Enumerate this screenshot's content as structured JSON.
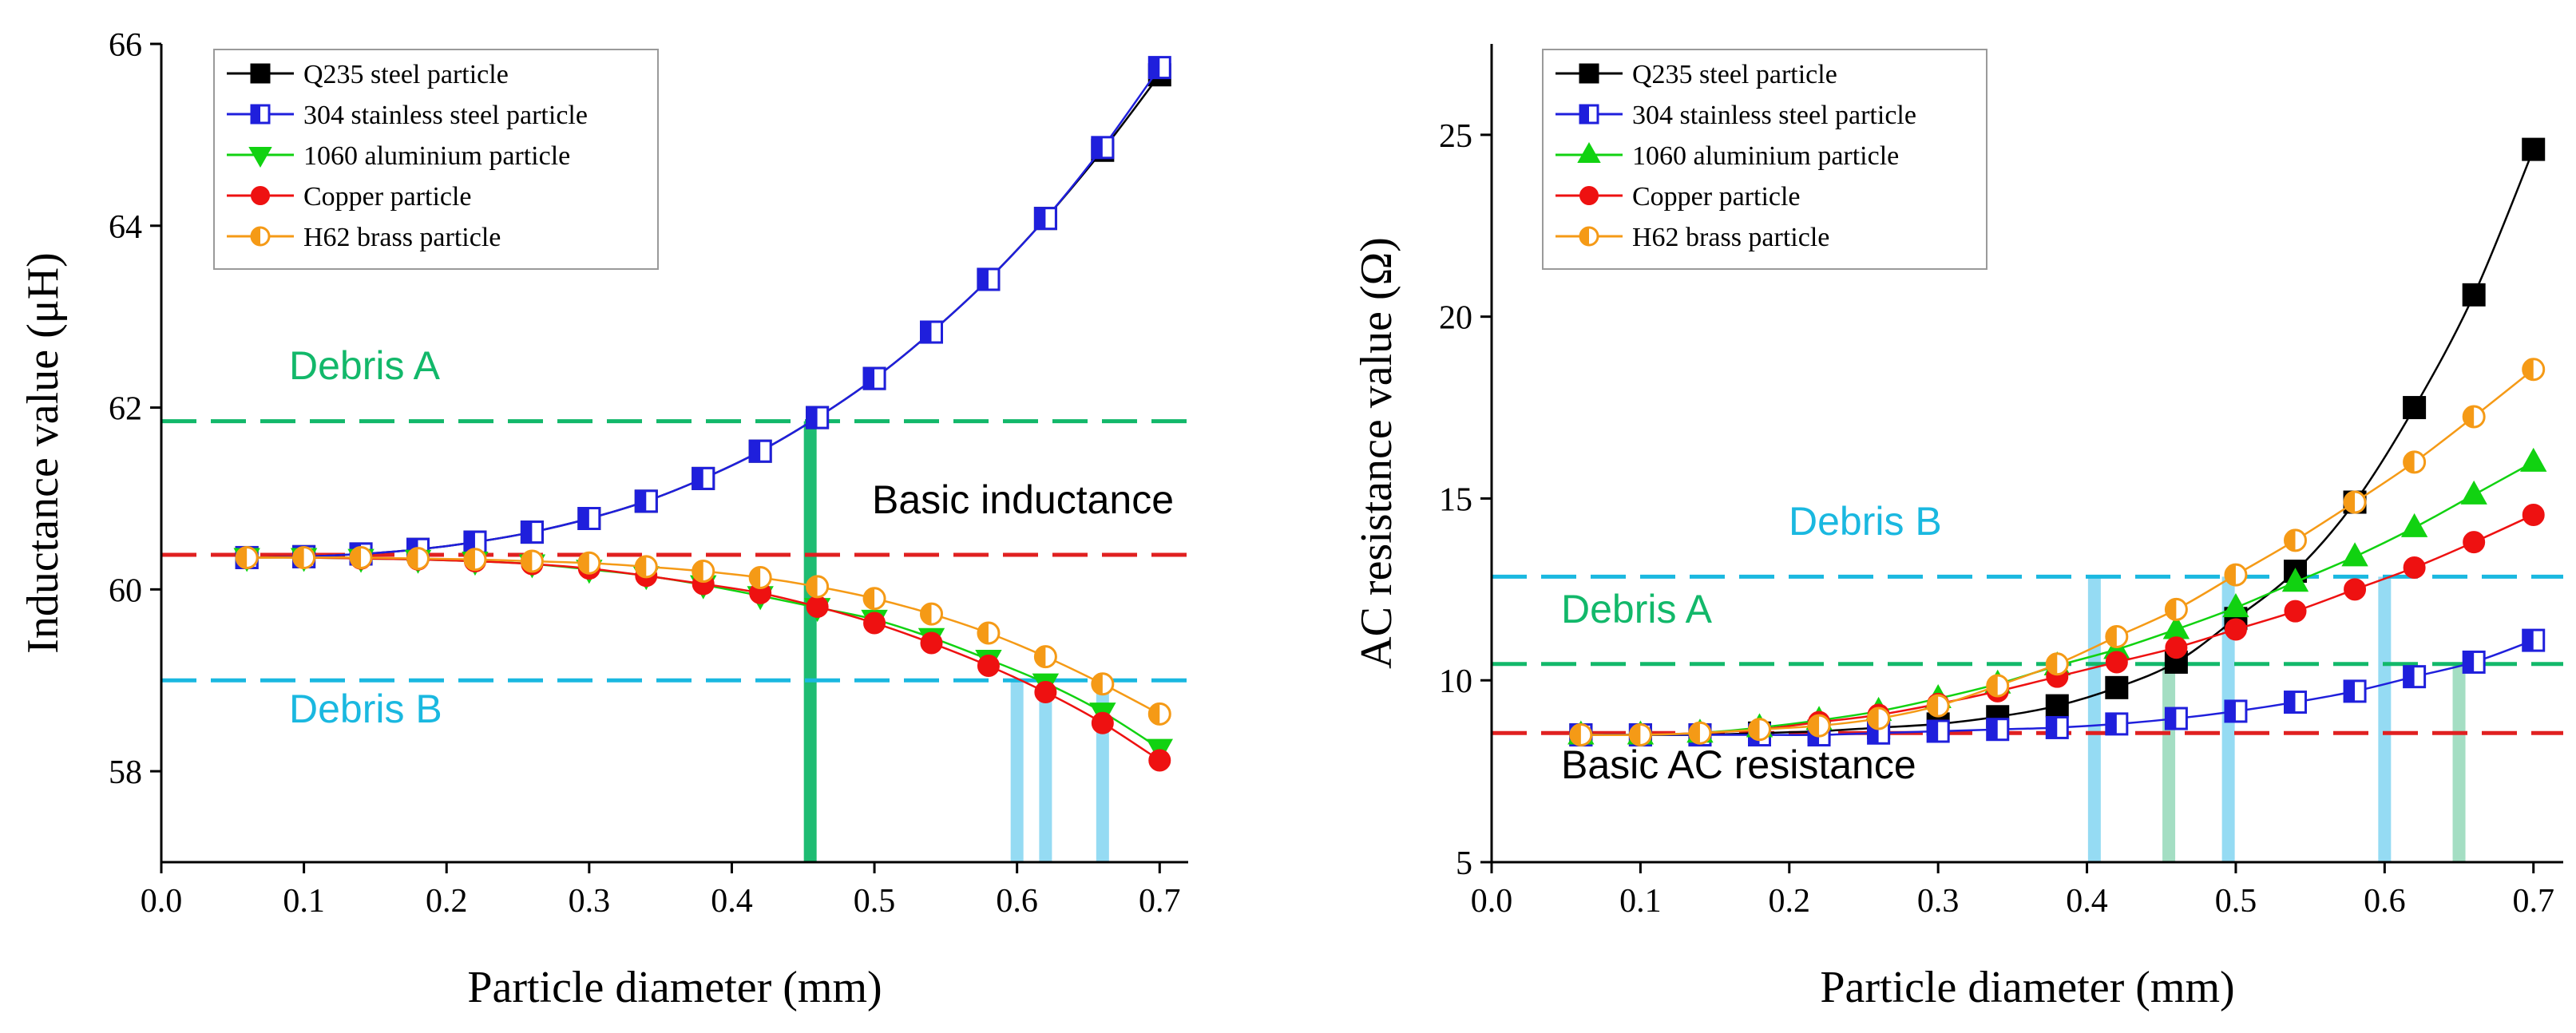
{
  "chart_data": [
    {
      "type": "line",
      "title": "",
      "xlabel": "Particle diameter (mm)",
      "ylabel": "Inductance value (μH)",
      "xlim": [
        0.0,
        0.72
      ],
      "ylim": [
        57.0,
        66.0
      ],
      "xticks": [
        "0.0",
        "0.1",
        "0.2",
        "0.3",
        "0.4",
        "0.5",
        "0.6",
        "0.7"
      ],
      "yticks": [
        "58",
        "60",
        "62",
        "64",
        "66"
      ],
      "legend_position": "top-left",
      "x": [
        0.06,
        0.1,
        0.14,
        0.18,
        0.22,
        0.26,
        0.3,
        0.34,
        0.38,
        0.42,
        0.46,
        0.5,
        0.54,
        0.58,
        0.62,
        0.66,
        0.7
      ],
      "series": [
        {
          "name": "Q235 steel particle",
          "color": "#000000",
          "marker": "square-filled",
          "values": [
            60.35,
            60.36,
            60.39,
            60.44,
            60.52,
            60.63,
            60.78,
            60.97,
            61.22,
            61.52,
            61.89,
            62.32,
            62.83,
            63.41,
            64.08,
            64.83,
            65.66
          ]
        },
        {
          "name": "304 stainless steel particle",
          "color": "#1f1fdc",
          "marker": "square-half",
          "values": [
            60.35,
            60.36,
            60.39,
            60.44,
            60.52,
            60.63,
            60.78,
            60.97,
            61.22,
            61.52,
            61.89,
            62.32,
            62.83,
            63.41,
            64.08,
            64.86,
            65.74
          ]
        },
        {
          "name": "1060 aluminium particle",
          "color": "#11d211",
          "marker": "triangle-down-filled",
          "values": [
            60.35,
            60.35,
            60.34,
            60.33,
            60.31,
            60.28,
            60.22,
            60.15,
            60.05,
            59.93,
            59.8,
            59.67,
            59.47,
            59.23,
            58.97,
            58.65,
            58.25
          ]
        },
        {
          "name": "Copper particle",
          "color": "#ee1111",
          "marker": "circle-filled",
          "values": [
            60.35,
            60.35,
            60.34,
            60.33,
            60.31,
            60.28,
            60.23,
            60.15,
            60.06,
            59.96,
            59.81,
            59.63,
            59.41,
            59.16,
            58.87,
            58.53,
            58.12
          ]
        },
        {
          "name": "H62 brass particle",
          "color": "#f59a16",
          "marker": "circle-half",
          "values": [
            60.35,
            60.35,
            60.35,
            60.34,
            60.33,
            60.31,
            60.29,
            60.25,
            60.2,
            60.13,
            60.03,
            59.9,
            59.73,
            59.52,
            59.26,
            58.96,
            58.63
          ]
        }
      ],
      "reference_lines": [
        {
          "label": "Debris A",
          "value": 61.85,
          "color": "#12b86a"
        },
        {
          "label": "Basic inductance",
          "value": 60.38,
          "color": "#e02020"
        },
        {
          "label": "Debris B",
          "value": 59.0,
          "color": "#1ab8e0"
        }
      ],
      "vertical_bars": [
        {
          "x": 0.455,
          "color": "#12b86a"
        },
        {
          "x": 0.6,
          "color": "#8fd9f2"
        },
        {
          "x": 0.62,
          "color": "#8fd9f2"
        },
        {
          "x": 0.66,
          "color": "#8fd9f2"
        }
      ]
    },
    {
      "type": "line",
      "title": "",
      "xlabel": "Particle diameter (mm)",
      "ylabel": "AC resistance value (Ω)",
      "xlim": [
        0.0,
        0.72
      ],
      "ylim": [
        5,
        27.5
      ],
      "xticks": [
        "0.0",
        "0.1",
        "0.2",
        "0.3",
        "0.4",
        "0.5",
        "0.6",
        "0.7"
      ],
      "yticks": [
        "5",
        "10",
        "15",
        "20",
        "25"
      ],
      "legend_position": "top-left",
      "x": [
        0.06,
        0.1,
        0.14,
        0.18,
        0.22,
        0.26,
        0.3,
        0.34,
        0.38,
        0.42,
        0.46,
        0.5,
        0.54,
        0.58,
        0.62,
        0.66,
        0.7
      ],
      "series": [
        {
          "name": "Q235 steel particle",
          "color": "#000000",
          "marker": "square-filled",
          "values": [
            8.5,
            8.5,
            8.5,
            8.55,
            8.6,
            8.7,
            8.8,
            9.0,
            9.3,
            9.8,
            10.5,
            11.7,
            13.0,
            14.9,
            17.5,
            20.6,
            24.6
          ]
        },
        {
          "name": "304 stainless steel particle",
          "color": "#1f1fdc",
          "marker": "square-half",
          "values": [
            8.5,
            8.5,
            8.5,
            8.5,
            8.5,
            8.55,
            8.6,
            8.65,
            8.7,
            8.8,
            8.95,
            9.15,
            9.4,
            9.7,
            10.1,
            10.5,
            11.1
          ]
        },
        {
          "name": "1060 aluminium particle",
          "color": "#11d211",
          "marker": "triangle-up-filled",
          "values": [
            8.5,
            8.5,
            8.55,
            8.7,
            8.9,
            9.15,
            9.5,
            9.9,
            10.4,
            10.85,
            11.4,
            12.0,
            12.7,
            13.4,
            14.2,
            15.1,
            16.0
          ]
        },
        {
          "name": "Copper particle",
          "color": "#ee1111",
          "marker": "circle-filled",
          "values": [
            8.5,
            8.5,
            8.55,
            8.65,
            8.85,
            9.05,
            9.35,
            9.7,
            10.1,
            10.5,
            10.9,
            11.4,
            11.9,
            12.5,
            13.1,
            13.8,
            14.55
          ]
        },
        {
          "name": "H62 brass particle",
          "color": "#f59a16",
          "marker": "circle-half",
          "values": [
            8.5,
            8.5,
            8.55,
            8.65,
            8.75,
            8.95,
            9.3,
            9.85,
            10.45,
            11.2,
            11.95,
            12.9,
            13.85,
            14.9,
            16.0,
            17.25,
            18.55
          ]
        }
      ],
      "reference_lines": [
        {
          "label": "Debris B",
          "value": 12.85,
          "color": "#1ab8e0"
        },
        {
          "label": "Debris A",
          "value": 10.45,
          "color": "#12b86a"
        },
        {
          "label": "Basic AC resistance",
          "value": 8.55,
          "color": "#e02020"
        }
      ],
      "vertical_bars": [
        {
          "x": 0.405,
          "color": "#8fd9f2"
        },
        {
          "x": 0.455,
          "color": "#9fdcc0"
        },
        {
          "x": 0.495,
          "color": "#8fd9f2"
        },
        {
          "x": 0.6,
          "color": "#8fd9f2"
        },
        {
          "x": 0.65,
          "color": "#9fdcc0"
        }
      ]
    }
  ]
}
